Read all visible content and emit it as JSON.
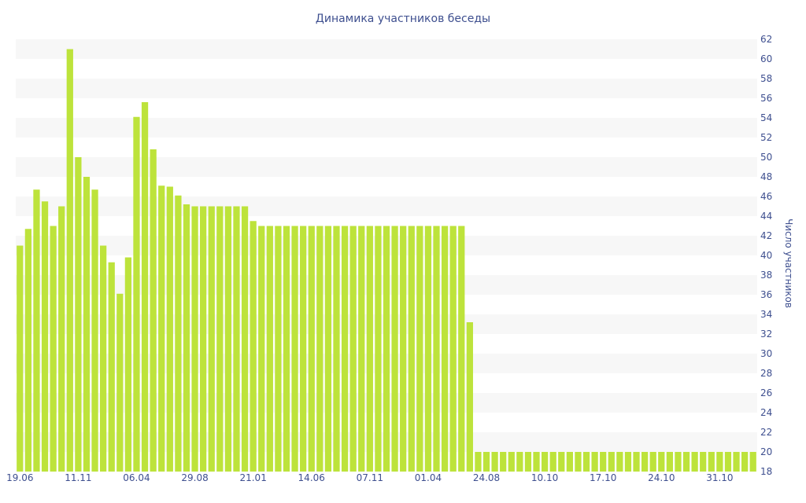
{
  "chart_data": {
    "type": "bar",
    "title": "Динамика участников беседы",
    "xlabel": "",
    "ylabel": "Число участников",
    "ylim": [
      18,
      62
    ],
    "y_ticks": [
      18,
      20,
      22,
      24,
      26,
      28,
      30,
      32,
      34,
      36,
      38,
      40,
      42,
      44,
      46,
      48,
      50,
      52,
      54,
      56,
      58,
      60,
      62
    ],
    "y_axis_position": "right",
    "grid": "horizontal alternating bands",
    "legend": "none",
    "x_tick_labels": [
      {
        "label": "19.06",
        "index": 0
      },
      {
        "label": "11.11",
        "index": 7
      },
      {
        "label": "06.04",
        "index": 14
      },
      {
        "label": "29.08",
        "index": 21
      },
      {
        "label": "21.01",
        "index": 28
      },
      {
        "label": "14.06",
        "index": 35
      },
      {
        "label": "07.11",
        "index": 42
      },
      {
        "label": "01.04",
        "index": 49
      },
      {
        "label": "24.08",
        "index": 56
      },
      {
        "label": "10.10",
        "index": 63
      },
      {
        "label": "17.10",
        "index": 70
      },
      {
        "label": "24.10",
        "index": 77
      },
      {
        "label": "31.10",
        "index": 84
      }
    ],
    "values": [
      41,
      42.7,
      46.7,
      45.5,
      43,
      45,
      61,
      50,
      48,
      46.7,
      41,
      39.3,
      36.1,
      39.8,
      54.1,
      55.6,
      50.8,
      47.1,
      47,
      46.1,
      45.2,
      45,
      45,
      45,
      45,
      45,
      45,
      45,
      43.5,
      43,
      43,
      43,
      43,
      43,
      43,
      43,
      43,
      43,
      43,
      43,
      43,
      43,
      43,
      43,
      43,
      43,
      43,
      43,
      43,
      43,
      43,
      43,
      43,
      43,
      33.2,
      20,
      20,
      20,
      20,
      20,
      20,
      20,
      20,
      20,
      20,
      20,
      20,
      20,
      20,
      20,
      20,
      20,
      20,
      20,
      20,
      20,
      20,
      20,
      20,
      20,
      20,
      20,
      20,
      20,
      20,
      20,
      20,
      20,
      20
    ],
    "colors": {
      "bar": "#bde33b",
      "band": "#f7f7f7",
      "text": "#3e4f8f"
    }
  }
}
